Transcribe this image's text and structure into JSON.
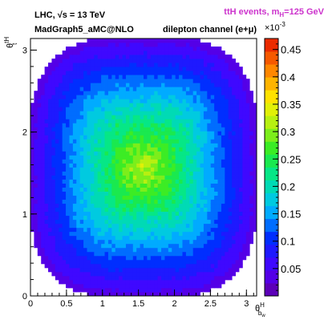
{
  "header": {
    "left_line1": "LHC, √s = 13 TeV",
    "left_line2": "MadGraph5_aMC@NLO",
    "channel": "dilepton channel (e+μ)",
    "events_prefix": "ttH events, m",
    "events_sub": "H",
    "events_suffix": "=125 GeV"
  },
  "colors": {
    "events_label": "#cc33cc",
    "text": "#000000"
  },
  "chart_data": {
    "type": "heatmap",
    "xlabel_main": "θ",
    "xlabel_sup": "H",
    "xlabel_sub": "b",
    "xlabel_subsub": "w",
    "ylabel_main": "θ",
    "ylabel_sup": "tH",
    "ylabel_sub": "t",
    "xlim": [
      0,
      3.1416
    ],
    "ylim": [
      0,
      3.1416
    ],
    "x_ticks": [
      0,
      0.5,
      1,
      1.5,
      2,
      2.5,
      3
    ],
    "x_tick_labels": [
      "0",
      "0.5",
      "1",
      "1.5",
      "2",
      "2.5",
      "3"
    ],
    "y_ticks": [
      0,
      1,
      2,
      3
    ],
    "y_tick_labels": [
      "0",
      "1",
      "2",
      "3"
    ],
    "z_range": [
      0,
      0.47
    ],
    "z_multiplier_base": "×10",
    "z_multiplier_exp": "-3",
    "z_ticks": [
      0.05,
      0.1,
      0.15,
      0.2,
      0.25,
      0.3,
      0.35,
      0.4,
      0.45
    ],
    "z_tick_labels": [
      "0.05",
      "0.1",
      "0.15",
      "0.2",
      "0.25",
      "0.3",
      "0.35",
      "0.4",
      "0.45"
    ],
    "bins": [
      64,
      64
    ],
    "peak": [
      1.57,
      1.57
    ],
    "max_value": 0.32,
    "edge_value": 0.03
  }
}
